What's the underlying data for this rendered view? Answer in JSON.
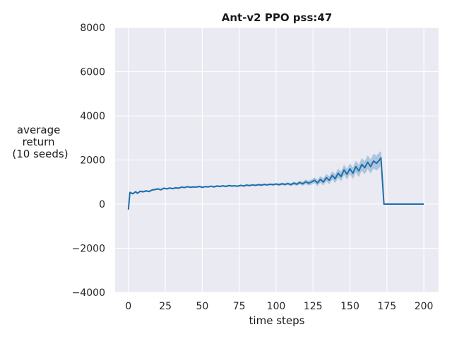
{
  "chart_data": {
    "type": "line",
    "title": "Ant-v2 PPO pss:47",
    "xlabel": "time steps",
    "ylabel_lines": [
      "average",
      "return",
      "(10 seeds)"
    ],
    "xlim": [
      -9,
      210
    ],
    "ylim": [
      -4000,
      8000
    ],
    "xticks": [
      0,
      25,
      50,
      75,
      100,
      125,
      150,
      175,
      200
    ],
    "yticks": [
      -4000,
      -2000,
      0,
      2000,
      4000,
      6000,
      8000
    ],
    "ytick_labels": [
      "−4000",
      "−2000",
      "0",
      "2000",
      "4000",
      "6000",
      "8000"
    ],
    "grid": true,
    "background": "#eaeaf2",
    "series": [
      {
        "color": "#1f6fab",
        "band_color": "#1f6fab",
        "x": [
          0,
          1,
          3,
          4,
          5,
          6,
          8,
          10,
          12,
          14,
          16,
          18,
          20,
          22,
          24,
          26,
          28,
          30,
          32,
          34,
          36,
          38,
          40,
          42,
          44,
          46,
          48,
          50,
          52,
          54,
          56,
          58,
          60,
          62,
          64,
          66,
          68,
          70,
          72,
          74,
          76,
          78,
          80,
          82,
          84,
          86,
          88,
          90,
          92,
          94,
          96,
          98,
          100,
          102,
          104,
          106,
          108,
          110,
          112,
          114,
          116,
          118,
          120,
          122,
          124,
          126,
          128,
          130,
          132,
          134,
          136,
          138,
          140,
          142,
          144,
          146,
          148,
          150,
          152,
          154,
          156,
          158,
          160,
          162,
          164,
          166,
          168,
          170,
          171,
          173,
          180,
          190,
          200
        ],
        "y": [
          -250,
          530,
          470,
          520,
          560,
          490,
          580,
          560,
          600,
          570,
          640,
          660,
          690,
          650,
          720,
          690,
          730,
          700,
          740,
          720,
          770,
          750,
          790,
          760,
          780,
          770,
          800,
          760,
          790,
          780,
          810,
          780,
          820,
          800,
          830,
          800,
          840,
          820,
          830,
          810,
          850,
          820,
          860,
          840,
          870,
          850,
          880,
          860,
          890,
          870,
          900,
          880,
          910,
          880,
          920,
          890,
          930,
          880,
          950,
          900,
          980,
          920,
          1010,
          950,
          1000,
          1080,
          960,
          1120,
          1000,
          1200,
          1080,
          1300,
          1150,
          1400,
          1250,
          1550,
          1350,
          1600,
          1400,
          1700,
          1500,
          1800,
          1650,
          1900,
          1700,
          1950,
          1850,
          2000,
          2100,
          0,
          0,
          0,
          0
        ],
        "band": [
          0,
          40,
          40,
          40,
          40,
          40,
          40,
          40,
          40,
          40,
          40,
          40,
          40,
          40,
          40,
          40,
          40,
          40,
          40,
          40,
          40,
          40,
          40,
          40,
          40,
          40,
          40,
          40,
          40,
          40,
          40,
          40,
          40,
          40,
          40,
          40,
          40,
          40,
          40,
          40,
          40,
          40,
          40,
          40,
          40,
          40,
          45,
          45,
          45,
          45,
          45,
          50,
          50,
          55,
          55,
          60,
          60,
          65,
          70,
          75,
          80,
          90,
          100,
          110,
          120,
          130,
          140,
          150,
          160,
          170,
          180,
          190,
          200,
          210,
          220,
          230,
          240,
          250,
          260,
          270,
          280,
          290,
          300,
          310,
          320,
          330,
          340,
          350,
          300,
          0,
          0,
          0,
          0
        ]
      }
    ]
  }
}
